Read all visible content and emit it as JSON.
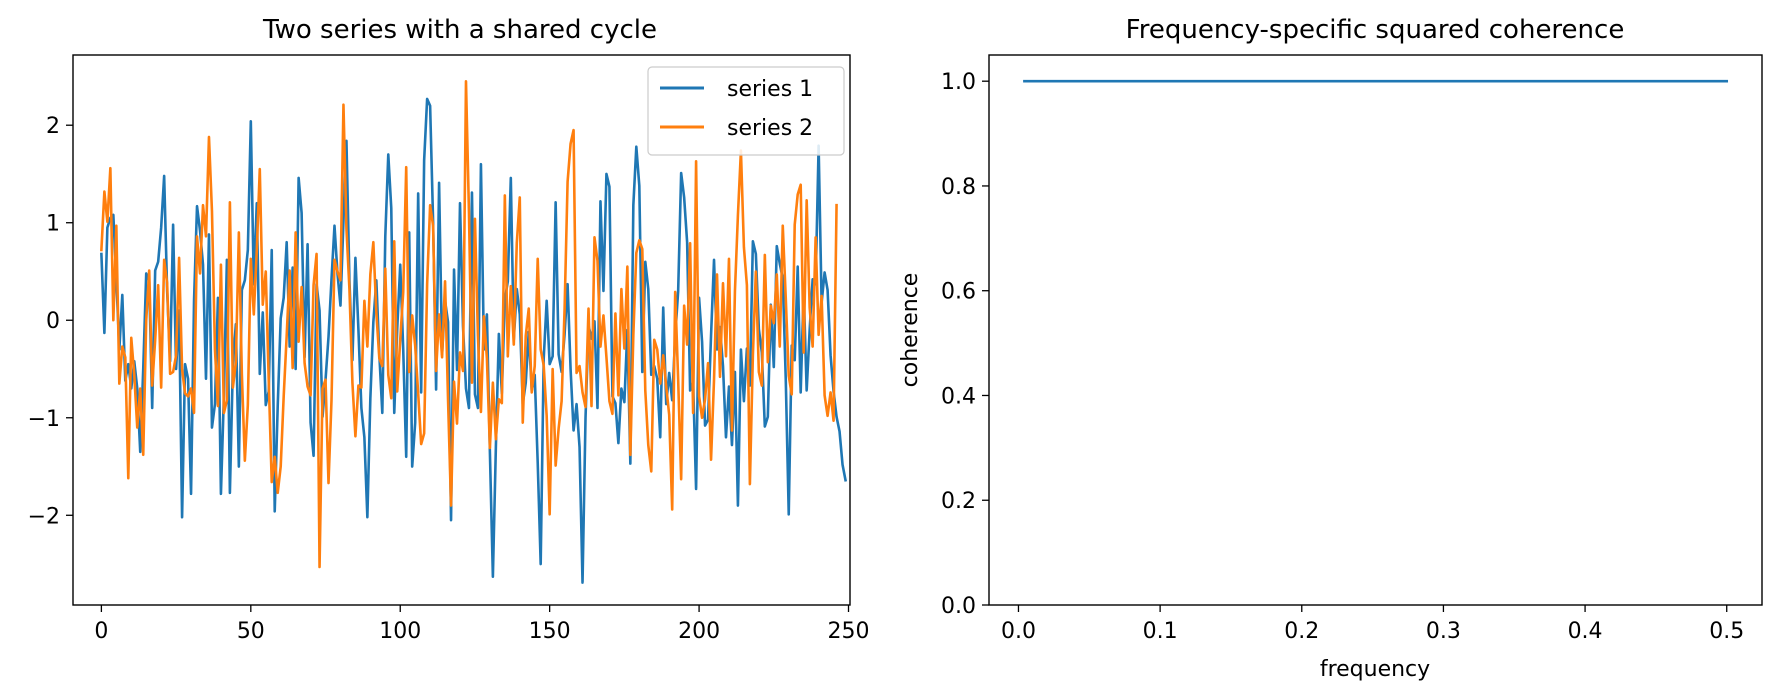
{
  "chart_data": [
    {
      "type": "line",
      "title": "Two series with a shared cycle",
      "xlabel": "",
      "ylabel": "",
      "xlim": [
        -9.5,
        250.5
      ],
      "ylim": [
        -2.92,
        2.72
      ],
      "x_ticks": [
        0,
        50,
        100,
        150,
        200,
        250
      ],
      "x_tick_labels": [
        "0",
        "50",
        "100",
        "150",
        "200",
        "250"
      ],
      "y_ticks": [
        -2,
        -1,
        0,
        1,
        2
      ],
      "y_tick_labels": [
        "−2",
        "−1",
        "0",
        "1",
        "2"
      ],
      "grid": false,
      "legend": "upper right",
      "x_start": 0,
      "x_step": 1,
      "series": [
        {
          "name": "series 1",
          "color": "#1f77b4",
          "values": [
            0.68,
            -0.13,
            0.95,
            1.05,
            1.08,
            0.42,
            -0.3,
            0.26,
            -0.62,
            -0.45,
            -0.7,
            -0.42,
            -0.7,
            -1.35,
            -0.5,
            0.48,
            0.4,
            -0.9,
            0.51,
            0.6,
            0.95,
            1.48,
            0.3,
            -0.42,
            0.98,
            -0.5,
            0.1,
            -2.02,
            -0.45,
            -0.6,
            -1.78,
            0.2,
            1.17,
            0.92,
            0.57,
            -0.6,
            0.88,
            -1.1,
            -0.86,
            0.23,
            -1.78,
            -0.76,
            0.62,
            -1.77,
            -0.45,
            -0.04,
            -1.5,
            0.31,
            0.41,
            0.72,
            2.04,
            0.37,
            1.2,
            -0.55,
            0.08,
            -0.87,
            -0.73,
            0.72,
            -1.96,
            -0.88,
            0.02,
            0.23,
            0.8,
            -0.27,
            0.54,
            -0.5,
            1.46,
            1.1,
            -0.38,
            0.78,
            -1.05,
            -1.39,
            0.37,
            0.1,
            -0.99,
            -0.61,
            -0.17,
            0.42,
            0.97,
            0.48,
            0.15,
            1.02,
            1.84,
            0.41,
            -0.41,
            0.64,
            -0.09,
            -0.9,
            -1.2,
            -2.02,
            -0.8,
            -0.02,
            0.41,
            -0.35,
            -0.95,
            0.86,
            1.7,
            1.15,
            -0.95,
            -0.08,
            0.57,
            -0.3,
            -1.4,
            0.9,
            -1.5,
            -1.05,
            1.3,
            -0.74,
            1.64,
            2.27,
            2.2,
            1.01,
            -0.71,
            1.41,
            -0.35,
            0.2,
            -0.02,
            -2.05,
            0.52,
            -0.51,
            1.2,
            -0.06,
            -0.7,
            -0.9,
            1.31,
            -0.76,
            -0.9,
            1.6,
            -0.3,
            0.06,
            -1.35,
            -2.63,
            -1.3,
            -0.14,
            -0.75,
            0.21,
            0.4,
            1.46,
            -0.2,
            0.32,
            0.06,
            -0.86,
            -0.64,
            -0.12,
            -0.72,
            -0.56,
            -1.46,
            -2.5,
            -0.4,
            0.2,
            -0.45,
            -0.37,
            1.21,
            -0.35,
            -0.53,
            -0.14,
            0.37,
            -0.5,
            -1.13,
            -0.86,
            -1.3,
            -2.69,
            -1.0,
            -0.05,
            -0.19,
            -0.01,
            -0.9,
            1.22,
            0.3,
            1.5,
            1.37,
            -0.78,
            -0.85,
            -1.26,
            -0.7,
            -0.84,
            -0.1,
            -1.47,
            1.18,
            1.78,
            1.38,
            -0.53,
            0.6,
            0.32,
            -0.56,
            -0.47,
            -0.6,
            -1.2,
            0.13,
            -0.86,
            -0.54,
            -0.82,
            -0.17,
            0.3,
            1.51,
            1.26,
            0.8,
            -0.72,
            -0.63,
            -1.73,
            0.23,
            -0.22,
            -1.08,
            -1.02,
            -0.16,
            0.62,
            -0.3,
            -0.07,
            -0.47,
            -1.2,
            -0.68,
            -1.28,
            -0.53,
            -1.9,
            -0.3,
            -0.83,
            -0.29,
            -0.67,
            0.81,
            0.68,
            -0.09,
            -0.33,
            -1.09,
            -0.99,
            0.16,
            -0.48,
            0.76,
            0.58,
            0.43,
            -0.6,
            -1.99,
            -0.26,
            -0.41,
            0.55,
            -0.74,
            0.31,
            -0.72,
            -0.1,
            0.42,
            0.37,
            1.79,
            0.18,
            0.49,
            0.31,
            -0.36,
            -0.73,
            -0.99,
            -1.14,
            -1.48,
            -1.64
          ]
        },
        {
          "name": "series 2",
          "color": "#ff7f0e",
          "values": [
            0.72,
            1.32,
            1.01,
            1.56,
            0.0,
            0.97,
            -0.65,
            -0.27,
            -0.38,
            -1.62,
            -0.18,
            -0.56,
            -1.1,
            -0.7,
            -1.38,
            0.0,
            0.51,
            -0.67,
            -0.2,
            0.36,
            -0.69,
            0.62,
            0.38,
            -0.55,
            -0.53,
            -0.36,
            0.64,
            -0.5,
            -0.75,
            -0.78,
            -0.7,
            -0.95,
            0.86,
            0.48,
            1.18,
            0.86,
            1.88,
            1.12,
            -0.3,
            -0.88,
            0.57,
            -0.95,
            -0.82,
            1.21,
            -0.69,
            -0.43,
            0.9,
            -0.55,
            -1.44,
            -0.87,
            0.63,
            0.06,
            0.72,
            1.55,
            0.16,
            0.5,
            -0.62,
            -1.66,
            -1.4,
            -1.77,
            -1.5,
            -0.78,
            -0.16,
            0.51,
            -0.49,
            0.9,
            -0.22,
            0.34,
            -0.44,
            -0.68,
            -0.77,
            0.36,
            0.68,
            -2.53,
            -0.7,
            -0.61,
            -1.67,
            -0.82,
            0.62,
            0.5,
            0.41,
            2.21,
            0.94,
            0.32,
            -0.64,
            -1.19,
            -0.67,
            -0.69,
            0.2,
            -0.27,
            0.47,
            0.8,
            0.08,
            -0.39,
            -0.47,
            0.53,
            -0.56,
            -0.8,
            0.81,
            -0.73,
            -0.2,
            0.29,
            1.57,
            -0.53,
            0.05,
            -0.26,
            -0.75,
            -1.27,
            -1.16,
            0.37,
            1.18,
            0.97,
            -0.52,
            0.06,
            -0.38,
            0.4,
            -0.82,
            -1.9,
            -0.63,
            -1.06,
            -0.33,
            -0.52,
            2.45,
            1.1,
            -0.64,
            1.04,
            -0.16,
            -0.94,
            0.04,
            -0.39,
            -1.31,
            -0.64,
            -1.22,
            -0.81,
            -0.85,
            1.28,
            -0.37,
            0.35,
            -0.25,
            0.79,
            1.26,
            -1.05,
            -0.16,
            0.12,
            -0.74,
            -0.47,
            0.63,
            -0.3,
            -0.46,
            -0.98,
            -1.99,
            -0.5,
            -1.49,
            -1.11,
            -0.83,
            0.12,
            1.42,
            1.81,
            1.95,
            -0.54,
            -0.47,
            -0.74,
            -0.89,
            0.12,
            -0.88,
            0.85,
            0.61,
            -0.27,
            0.05,
            -0.38,
            -0.83,
            -0.96,
            0.07,
            -0.77,
            0.32,
            -0.29,
            0.55,
            -1.38,
            -0.15,
            0.69,
            0.82,
            0.73,
            -0.72,
            -1.28,
            -1.55,
            -0.2,
            -0.3,
            -0.65,
            -0.36,
            -0.68,
            -0.97,
            -1.94,
            0.29,
            -0.61,
            -1.63,
            0.15,
            -0.25,
            0.79,
            -0.95,
            1.63,
            -0.78,
            -1.0,
            -0.81,
            -0.44,
            -1.43,
            -0.61,
            0.47,
            -0.58,
            0.38,
            -0.37,
            0.63,
            -1.13,
            0.3,
            1.08,
            1.74,
            0.75,
            0.36,
            -1.68,
            -0.36,
            0.5,
            -0.53,
            -0.67,
            0.67,
            -0.43,
            0.15,
            -0.03,
            0.47,
            -0.27,
            0.97,
            0.23,
            -0.57,
            -0.76,
            0.98,
            1.29,
            1.39,
            -0.33,
            1.23,
            0.13,
            -0.27,
            0.85,
            -0.15,
            0.25,
            -0.77,
            -0.98,
            -0.74,
            -1.03,
            1.18
          ]
        }
      ]
    },
    {
      "type": "line",
      "title": "Frequency-specific squared coherence",
      "xlabel": "frequency",
      "ylabel": "coherence",
      "xlim": [
        -0.0208,
        0.5249
      ],
      "ylim": [
        0.0,
        1.05
      ],
      "x_ticks": [
        0.0,
        0.1,
        0.2,
        0.3,
        0.4,
        0.5
      ],
      "x_tick_labels": [
        "0.0",
        "0.1",
        "0.2",
        "0.3",
        "0.4",
        "0.5"
      ],
      "y_ticks": [
        0.0,
        0.2,
        0.4,
        0.6,
        0.8,
        1.0
      ],
      "y_tick_labels": [
        "0.0",
        "0.2",
        "0.4",
        "0.6",
        "0.8",
        "1.0"
      ],
      "grid": false,
      "series": [
        {
          "color": "#1f77b4",
          "x": [
            0.0042,
            0.5
          ],
          "y": [
            1.0,
            1.0
          ]
        }
      ]
    }
  ]
}
